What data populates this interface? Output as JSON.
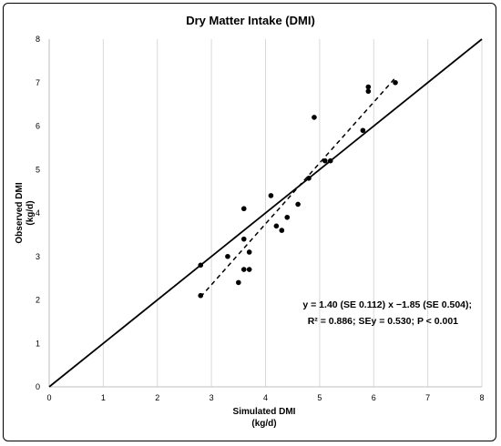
{
  "chart_data": {
    "type": "scatter",
    "title": "Dry Matter Intake (DMI)",
    "xlabel_line1": "Simulated DMI",
    "xlabel_line2": "(kg/d)",
    "ylabel_line1": "Observed DMI",
    "ylabel_line2": "(kg/d)",
    "xlim": [
      0,
      8
    ],
    "ylim": [
      0,
      8
    ],
    "xticks": [
      "0",
      "1",
      "2",
      "3",
      "4",
      "5",
      "6",
      "7",
      "8"
    ],
    "yticks": [
      "0",
      "1",
      "2",
      "3",
      "4",
      "5",
      "6",
      "7",
      "8"
    ],
    "grid": "vertical",
    "points": [
      {
        "x": 2.8,
        "y": 2.8
      },
      {
        "x": 2.8,
        "y": 2.1
      },
      {
        "x": 3.3,
        "y": 3.0
      },
      {
        "x": 3.5,
        "y": 2.4
      },
      {
        "x": 3.6,
        "y": 2.7
      },
      {
        "x": 3.6,
        "y": 3.4
      },
      {
        "x": 3.6,
        "y": 4.1
      },
      {
        "x": 3.7,
        "y": 3.1
      },
      {
        "x": 3.7,
        "y": 2.7
      },
      {
        "x": 4.1,
        "y": 4.4
      },
      {
        "x": 4.2,
        "y": 3.7
      },
      {
        "x": 4.3,
        "y": 3.6
      },
      {
        "x": 4.4,
        "y": 3.9
      },
      {
        "x": 4.6,
        "y": 4.2
      },
      {
        "x": 4.8,
        "y": 4.8
      },
      {
        "x": 4.9,
        "y": 6.2
      },
      {
        "x": 5.1,
        "y": 5.2
      },
      {
        "x": 5.2,
        "y": 5.2
      },
      {
        "x": 5.8,
        "y": 5.9
      },
      {
        "x": 5.9,
        "y": 6.8
      },
      {
        "x": 5.9,
        "y": 6.9
      },
      {
        "x": 6.4,
        "y": 7.0
      }
    ],
    "identity_line": {
      "x": [
        0,
        8
      ],
      "y": [
        0,
        8
      ]
    },
    "regression_line": {
      "x": [
        2.8,
        6.4
      ],
      "y": [
        2.07,
        7.11
      ],
      "style": "dashed"
    },
    "annotation_line1": "y = 1.40 (SE 0.112) x −1.85 (SE 0.504);",
    "annotation_line2": "R² = 0.886; SEy = 0.530; P < 0.001"
  }
}
